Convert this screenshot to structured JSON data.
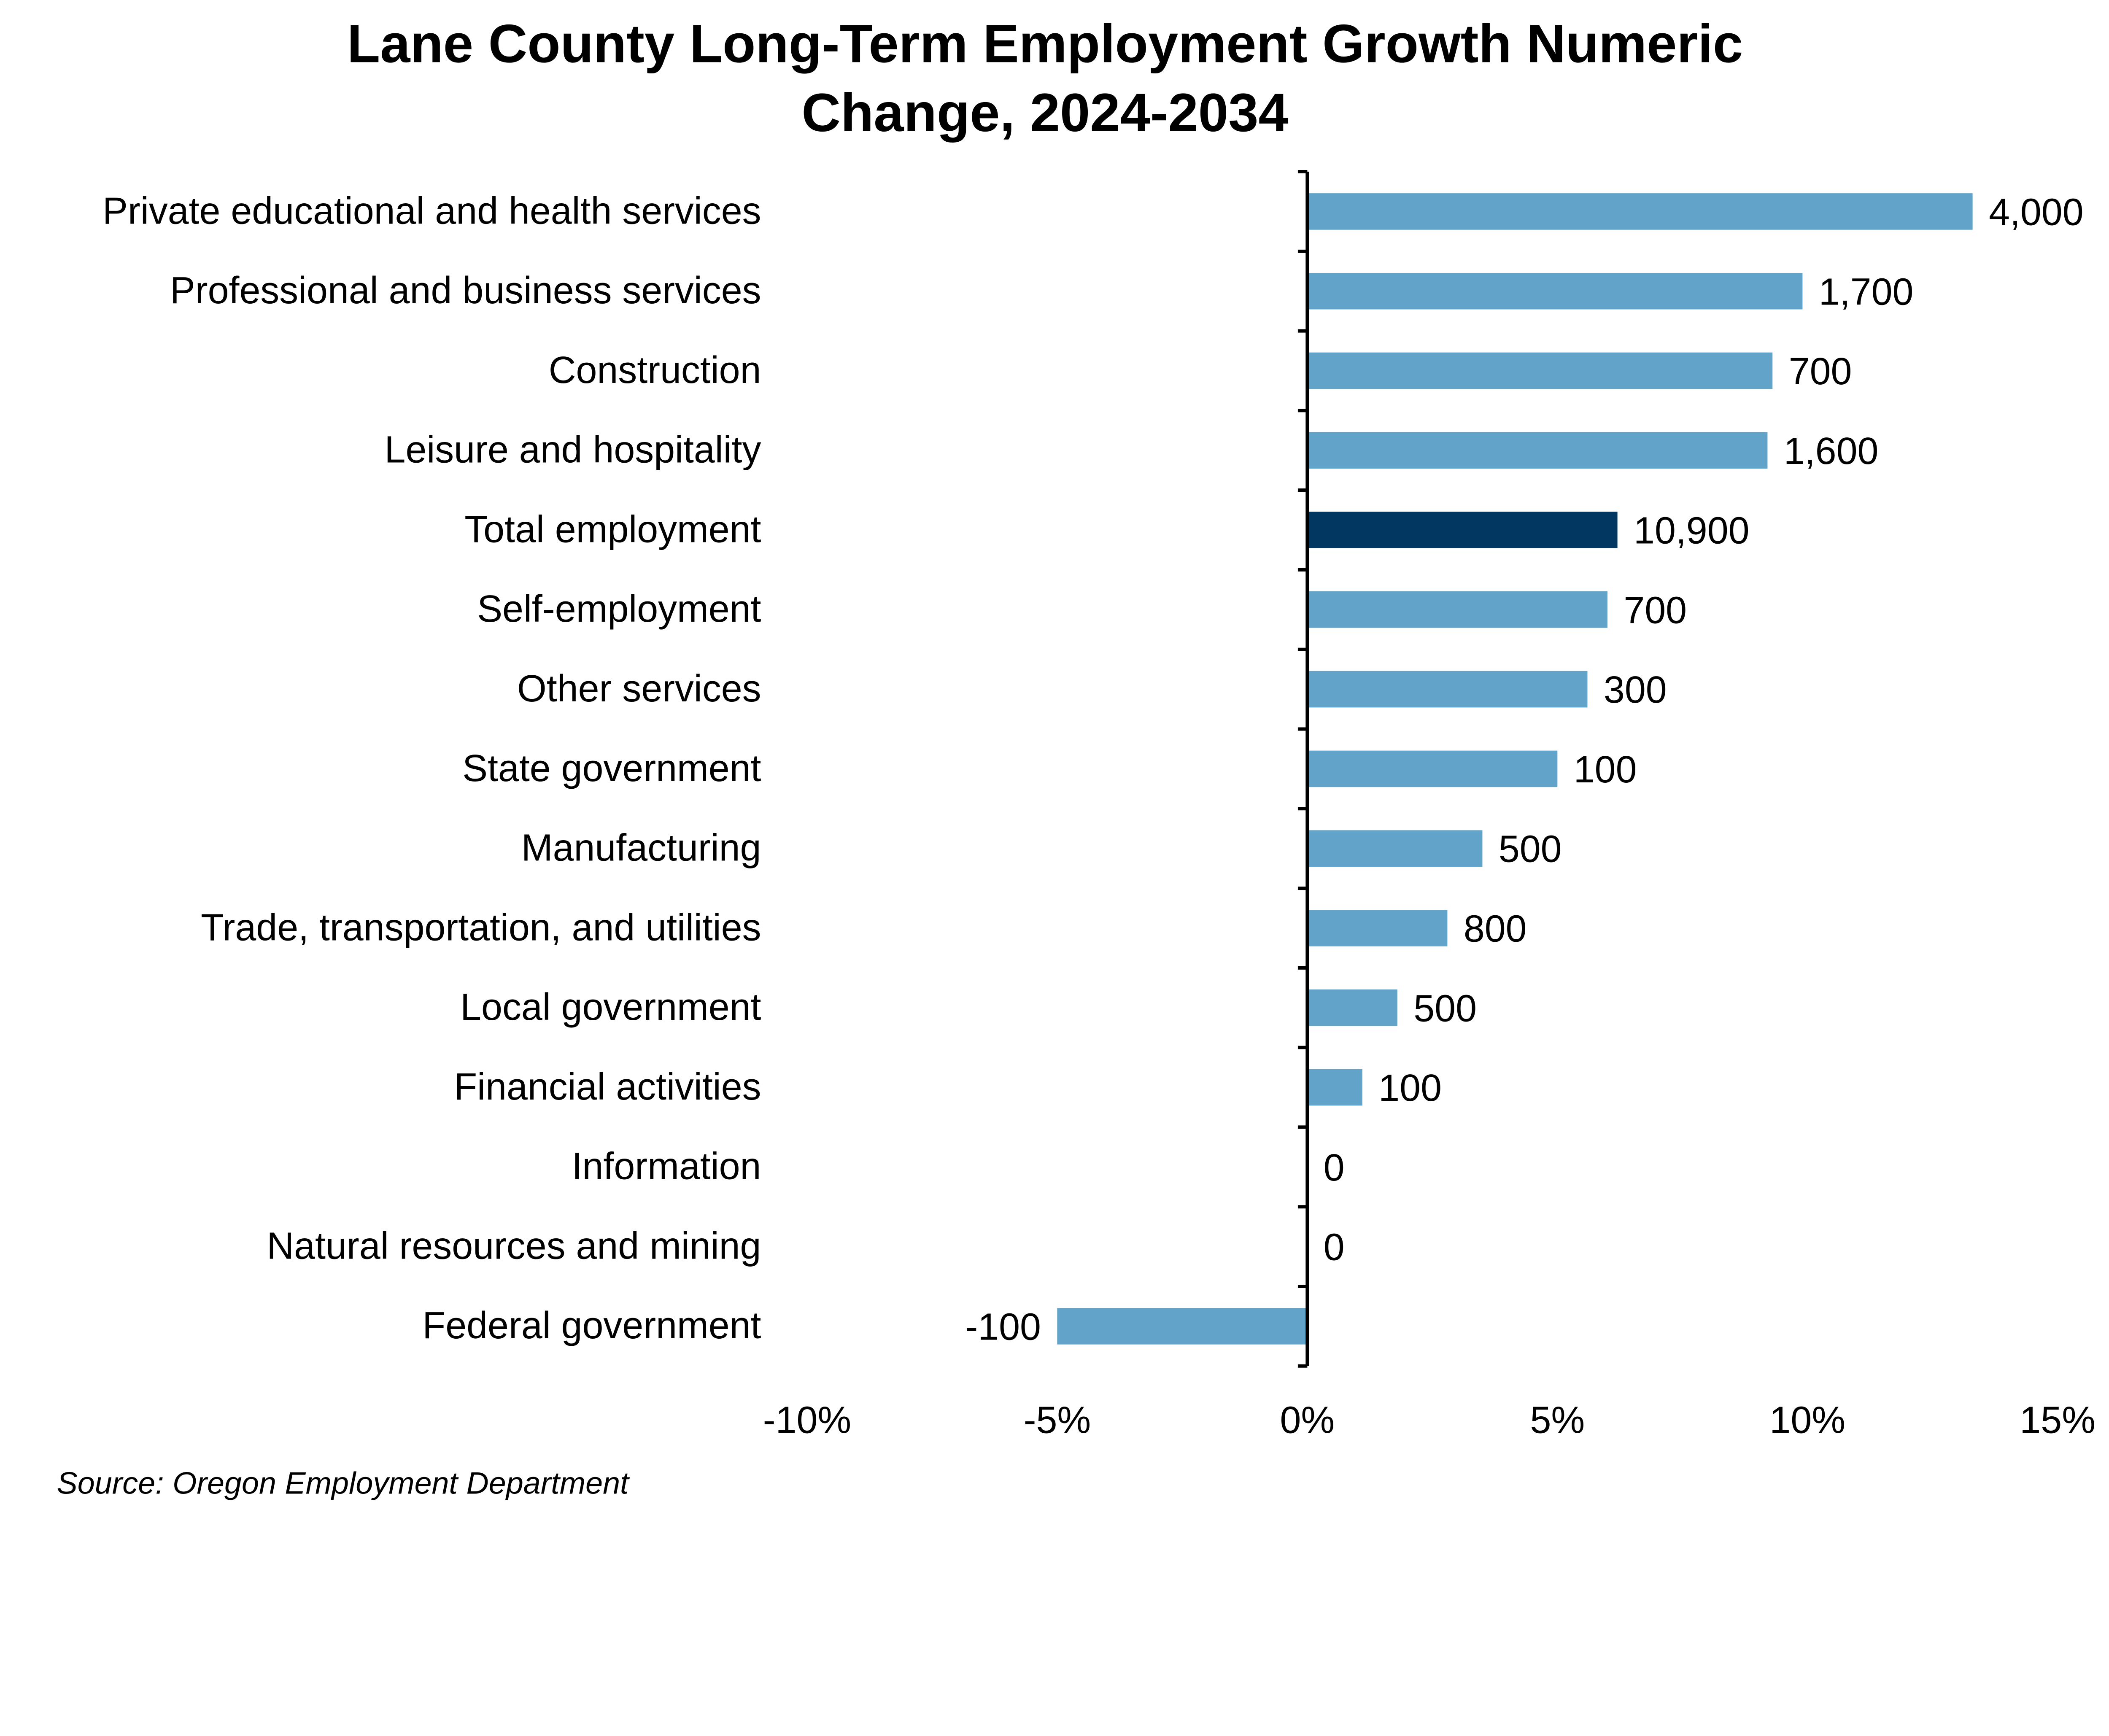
{
  "chart_data": {
    "type": "bar",
    "orientation": "horizontal",
    "title": "Lane County Long-Term Employment Growth Numeric Change, 2024-2034",
    "title_lines": [
      "Lane County Long-Term Employment Growth Numeric",
      "Change, 2024-2034"
    ],
    "source": "Source: Oregon Employment Department",
    "categories": [
      "Private educational and health services",
      "Professional and business services",
      "Construction",
      "Leisure and hospitality",
      "Total employment",
      "Self-employment",
      "Other services",
      "State government",
      "Manufacturing",
      "Trade, transportation, and utilities",
      "Local government",
      "Financial activities",
      "Information",
      "Natural resources and mining",
      "Federal government"
    ],
    "values_percent": [
      13.3,
      9.9,
      9.3,
      9.2,
      6.2,
      6.0,
      5.6,
      5.0,
      3.5,
      2.8,
      1.8,
      1.1,
      0,
      0,
      -5.0
    ],
    "data_labels": [
      "4,000",
      "1,700",
      "700",
      "1,600",
      "10,900",
      "700",
      "300",
      "100",
      "500",
      "800",
      "500",
      "100",
      "0",
      "0",
      "-100"
    ],
    "highlight_category": "Total employment",
    "xlim": [
      -10,
      15
    ],
    "xticks": [
      -10,
      -5,
      0,
      5,
      10,
      15
    ],
    "xtick_labels": [
      "-10%",
      "-5%",
      "0%",
      "5%",
      "10%",
      "15%"
    ],
    "grid": false,
    "colors": {
      "bar": "#62a3c9",
      "highlight": "#023761",
      "axis": "#000000"
    }
  }
}
